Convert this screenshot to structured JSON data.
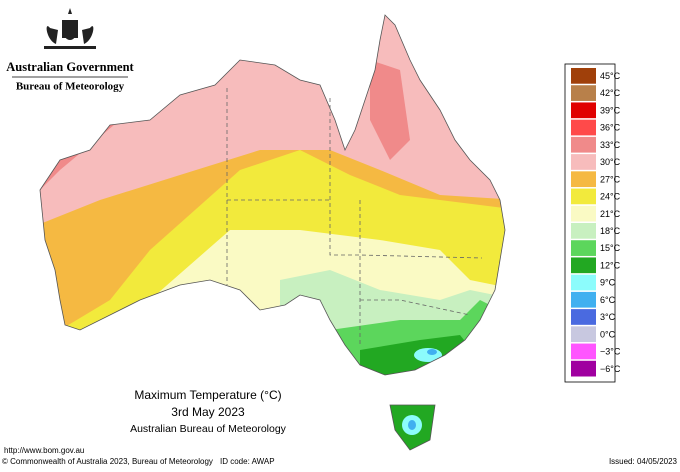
{
  "header": {
    "government": "Australian Government",
    "bureau": "Bureau of Meteorology"
  },
  "legend": {
    "items": [
      {
        "label": "45°C",
        "color": "#a0400a"
      },
      {
        "label": "42°C",
        "color": "#b8804a"
      },
      {
        "label": "39°C",
        "color": "#e00000"
      },
      {
        "label": "36°C",
        "color": "#ff4a4a"
      },
      {
        "label": "33°C",
        "color": "#f08a8a"
      },
      {
        "label": "30°C",
        "color": "#f7bcbc"
      },
      {
        "label": "27°C",
        "color": "#f5b942"
      },
      {
        "label": "24°C",
        "color": "#f2ea3c"
      },
      {
        "label": "21°C",
        "color": "#fafac4"
      },
      {
        "label": "18°C",
        "color": "#c8f0c0"
      },
      {
        "label": "15°C",
        "color": "#5cd65c"
      },
      {
        "label": "12°C",
        "color": "#22a822"
      },
      {
        "label": "9°C",
        "color": "#8cfcfc"
      },
      {
        "label": "6°C",
        "color": "#40b0f0"
      },
      {
        "label": "3°C",
        "color": "#4a6ae0"
      },
      {
        "label": "0°C",
        "color": "#c8c8e0"
      },
      {
        "label": "−3°C",
        "color": "#ff55ff"
      },
      {
        "label": "−6°C",
        "color": "#a000a0"
      }
    ]
  },
  "title": {
    "line1": "Maximum Temperature (°C)",
    "line2": "3rd May 2023",
    "line3": "Australian Bureau of Meteorology"
  },
  "footer": {
    "url": "http://www.bom.gov.au",
    "copyright": "© Commonwealth of Australia 2023, Bureau of Meteorology",
    "id_code": "ID code: AWAP",
    "issued": "Issued: 04/05/2023"
  }
}
